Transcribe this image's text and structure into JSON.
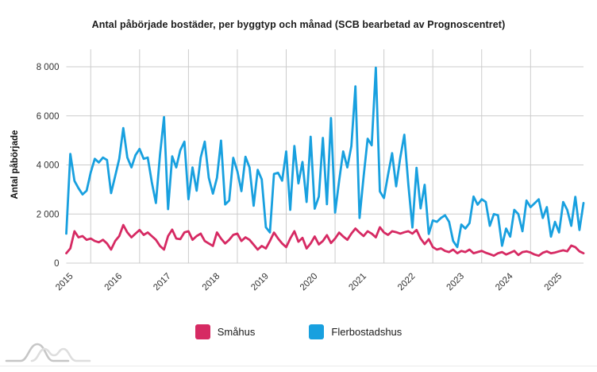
{
  "title": "Antal påbörjade bostäder, per byggtyp och månad (SCB bearbetad av Prognoscentret)",
  "y_axis": {
    "label": "Antal påbörjade",
    "tick_labels": [
      "0",
      "2 000",
      "4 000",
      "6 000",
      "8 000"
    ],
    "tick_values": [
      0,
      2000,
      4000,
      6000,
      8000
    ]
  },
  "x_axis": {
    "year_labels": [
      "2015",
      "2016",
      "2017",
      "2018",
      "2019",
      "2020",
      "2021",
      "2022",
      "2023",
      "2024",
      "2025"
    ]
  },
  "legend": {
    "items": [
      {
        "label": "Småhus",
        "color": "#d62a63"
      },
      {
        "label": "Flerbostadshus",
        "color": "#18a0df"
      }
    ]
  },
  "colors": {
    "smahus": "#d62a63",
    "flerbostadshus": "#18a0df",
    "gridline": "#cccccc",
    "axis_text": "#333333",
    "watermark": "#c9c9c9"
  },
  "watermark_name": "prognoscentret-wave-logo",
  "chart_data": {
    "type": "line",
    "title": "Antal påbörjade bostäder, per byggtyp och månad (SCB bearbetad av Prognoscentret)",
    "xlabel": "",
    "ylabel": "Antal påbörjade",
    "ylim": [
      0,
      8000
    ],
    "x_start": "2015-01",
    "x_end": "2025-08",
    "x_interval": "month",
    "grid": true,
    "legend_position": "bottom",
    "series": [
      {
        "name": "Småhus",
        "color": "#d62a63",
        "values": [
          400,
          600,
          1300,
          1050,
          1100,
          950,
          1000,
          900,
          850,
          950,
          800,
          550,
          900,
          1100,
          1550,
          1250,
          1050,
          1200,
          1350,
          1150,
          1250,
          1100,
          950,
          700,
          550,
          1100,
          1365,
          1000,
          975,
          1250,
          1300,
          950,
          1100,
          1200,
          900,
          800,
          700,
          1250,
          1000,
          800,
          950,
          1150,
          1200,
          900,
          1050,
          950,
          750,
          550,
          700,
          595,
          900,
          1245,
          1000,
          800,
          650,
          1000,
          1300,
          870,
          1030,
          595,
          800,
          1085,
          760,
          900,
          1140,
          815,
          1000,
          1245,
          1085,
          950,
          1200,
          1410,
          1245,
          1100,
          1300,
          1200,
          1050,
          1460,
          1250,
          1150,
          1300,
          1260,
          1200,
          1258,
          1300,
          1200,
          1350,
          1000,
          775,
          975,
          655,
          550,
          600,
          495,
          450,
          550,
          400,
          495,
          450,
          550,
          400,
          450,
          500,
          420,
          365,
          300,
          400,
          450,
          350,
          420,
          500,
          330,
          450,
          480,
          430,
          350,
          300,
          420,
          480,
          400,
          430,
          480,
          520,
          480,
          715,
          650,
          480,
          400
        ]
      },
      {
        "name": "Flerbostadshus",
        "color": "#18a0df",
        "values": [
          1200,
          4450,
          3350,
          3050,
          2800,
          2950,
          3700,
          4250,
          4100,
          4300,
          4200,
          2850,
          3550,
          4250,
          5500,
          4300,
          3900,
          4400,
          4650,
          4250,
          4300,
          3300,
          2450,
          4400,
          5950,
          2200,
          4350,
          3900,
          4600,
          4950,
          2600,
          3900,
          2950,
          4300,
          4950,
          3480,
          2830,
          3480,
          4990,
          2390,
          2550,
          4290,
          3740,
          2930,
          4330,
          3900,
          2340,
          3800,
          3410,
          1460,
          1250,
          3630,
          3680,
          3360,
          4550,
          2170,
          4770,
          3250,
          4120,
          2490,
          5150,
          2220,
          2710,
          5100,
          2400,
          5910,
          2060,
          3360,
          4550,
          3900,
          4770,
          7200,
          1840,
          3520,
          5070,
          4800,
          7960,
          2920,
          2650,
          3600,
          4480,
          3130,
          4300,
          5230,
          3190,
          1450,
          3880,
          2230,
          3190,
          1190,
          1740,
          1680,
          1840,
          1950,
          1680,
          900,
          650,
          1570,
          1410,
          1630,
          2710,
          2380,
          2600,
          2490,
          1520,
          2000,
          1950,
          705,
          1410,
          1080,
          2170,
          2000,
          1300,
          2550,
          2280,
          2440,
          2600,
          1840,
          2280,
          1080,
          1680,
          1250,
          2490,
          2170,
          1520,
          2700,
          1350,
          2450
        ]
      }
    ]
  }
}
